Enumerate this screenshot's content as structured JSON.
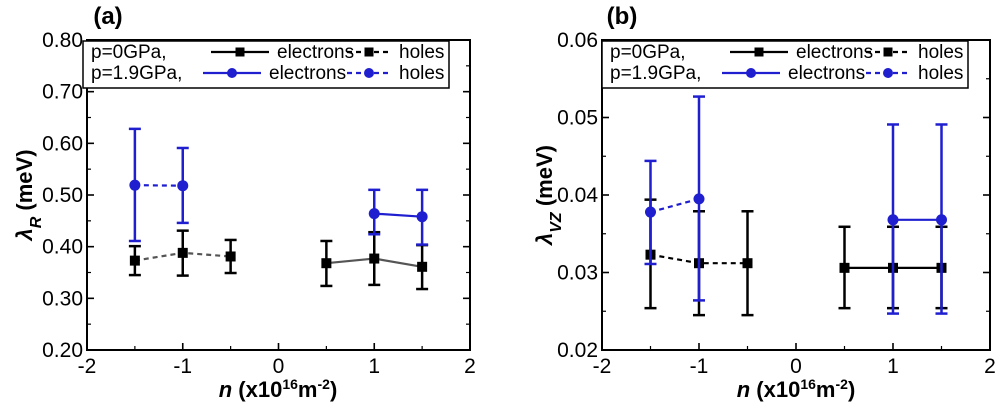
{
  "chart_data": [
    {
      "type": "line",
      "panel_label": "(a)",
      "xlabel_var": "n",
      "xlabel_rest": " (x10",
      "xlabel_exp1": "16",
      "xlabel_unit": "m",
      "xlabel_exp2": "-2",
      "xlabel_close": ")",
      "ylabel_var": "λ",
      "ylabel_sub": "R",
      "ylabel_rest": " (meV)",
      "xlim": [
        -2,
        2
      ],
      "ylim": [
        0.2,
        0.8
      ],
      "xticks": [
        -2,
        -1,
        0,
        1,
        2
      ],
      "xtick_labels": [
        "-2",
        "-1",
        "0",
        "1",
        "2"
      ],
      "yticks": [
        0.2,
        0.3,
        0.4,
        0.5,
        0.6,
        0.7,
        0.8
      ],
      "ytick_labels": [
        "0.20",
        "0.30",
        "0.40",
        "0.50",
        "0.60",
        "0.70",
        "0.80"
      ],
      "legend": {
        "row1_label": "p=0GPa,",
        "row2_label": "p=1.9GPa,",
        "electrons": "electrons",
        "holes": "holes"
      },
      "series": [
        {
          "name": "p=0GPa holes",
          "pressure": "0GPa",
          "carrier": "holes",
          "color": "#000000",
          "linecolor": "#555555",
          "marker": "square",
          "dashed": true,
          "x": [
            -1.5,
            -1.0,
            -0.5
          ],
          "y": [
            0.373,
            0.388,
            0.381
          ],
          "err_low": [
            0.345,
            0.344,
            0.349
          ],
          "err_high": [
            0.401,
            0.431,
            0.413
          ]
        },
        {
          "name": "p=0GPa electrons",
          "pressure": "0GPa",
          "carrier": "electrons",
          "color": "#000000",
          "linecolor": "#555555",
          "marker": "square",
          "dashed": false,
          "x": [
            0.5,
            1.0,
            1.5
          ],
          "y": [
            0.368,
            0.377,
            0.361
          ],
          "err_low": [
            0.324,
            0.326,
            0.318
          ],
          "err_high": [
            0.411,
            0.428,
            0.403
          ]
        },
        {
          "name": "p=1.9GPa holes",
          "pressure": "1.9GPa",
          "carrier": "holes",
          "color": "#1f1fd0",
          "linecolor": "#1f1fd0",
          "marker": "circle",
          "dashed": true,
          "x": [
            -1.5,
            -1.0
          ],
          "y": [
            0.519,
            0.518
          ],
          "err_low": [
            0.411,
            0.446
          ],
          "err_high": [
            0.628,
            0.591
          ]
        },
        {
          "name": "p=1.9GPa electrons",
          "pressure": "1.9GPa",
          "carrier": "electrons",
          "color": "#1f1fd0",
          "linecolor": "#1f1fd0",
          "marker": "circle",
          "dashed": false,
          "x": [
            1.0,
            1.5
          ],
          "y": [
            0.464,
            0.458
          ],
          "err_low": [
            0.424,
            0.404
          ],
          "err_high": [
            0.51,
            0.51
          ]
        }
      ]
    },
    {
      "type": "line",
      "panel_label": "(b)",
      "xlabel_var": "n",
      "xlabel_rest": " (x10",
      "xlabel_exp1": "16",
      "xlabel_unit": "m",
      "xlabel_exp2": "-2",
      "xlabel_close": ")",
      "ylabel_var": "λ",
      "ylabel_sub": "VZ",
      "ylabel_rest": " (meV)",
      "xlim": [
        -2,
        2
      ],
      "ylim": [
        0.02,
        0.06
      ],
      "xticks": [
        -2,
        -1,
        0,
        1,
        2
      ],
      "xtick_labels": [
        "-2",
        "-1",
        "0",
        "1",
        "2"
      ],
      "yticks": [
        0.02,
        0.03,
        0.04,
        0.05,
        0.06
      ],
      "ytick_labels": [
        "0.02",
        "0.03",
        "0.04",
        "0.05",
        "0.06"
      ],
      "legend": {
        "row1_label": "p=0GPa,",
        "row2_label": "p=1.9GPa,",
        "electrons": "electrons",
        "holes": "holes"
      },
      "series": [
        {
          "name": "p=0GPa holes",
          "pressure": "0GPa",
          "carrier": "holes",
          "color": "#000000",
          "linecolor": "#000000",
          "marker": "square",
          "dashed": true,
          "x": [
            -1.5,
            -1.0,
            -0.5
          ],
          "y": [
            0.0323,
            0.0312,
            0.0312
          ],
          "err_low": [
            0.0254,
            0.0245,
            0.0245
          ],
          "err_high": [
            0.0394,
            0.0379,
            0.0379
          ]
        },
        {
          "name": "p=0GPa electrons",
          "pressure": "0GPa",
          "carrier": "electrons",
          "color": "#000000",
          "linecolor": "#000000",
          "marker": "square",
          "dashed": false,
          "x": [
            0.5,
            1.0,
            1.5
          ],
          "y": [
            0.0306,
            0.0306,
            0.0306
          ],
          "err_low": [
            0.0254,
            0.0254,
            0.0254
          ],
          "err_high": [
            0.0359,
            0.0359,
            0.0359
          ]
        },
        {
          "name": "p=1.9GPa holes",
          "pressure": "1.9GPa",
          "carrier": "holes",
          "color": "#1f1fd0",
          "linecolor": "#1f1fd0",
          "marker": "circle",
          "dashed": true,
          "x": [
            -1.5,
            -1.0
          ],
          "y": [
            0.0378,
            0.0395
          ],
          "err_low": [
            0.0311,
            0.0264
          ],
          "err_high": [
            0.0444,
            0.0527
          ]
        },
        {
          "name": "p=1.9GPa electrons",
          "pressure": "1.9GPa",
          "carrier": "electrons",
          "color": "#1f1fd0",
          "linecolor": "#1f1fd0",
          "marker": "circle",
          "dashed": false,
          "x": [
            1.0,
            1.5
          ],
          "y": [
            0.0368,
            0.0368
          ],
          "err_low": [
            0.0247,
            0.0247
          ],
          "err_high": [
            0.0491,
            0.0491
          ]
        }
      ]
    }
  ]
}
